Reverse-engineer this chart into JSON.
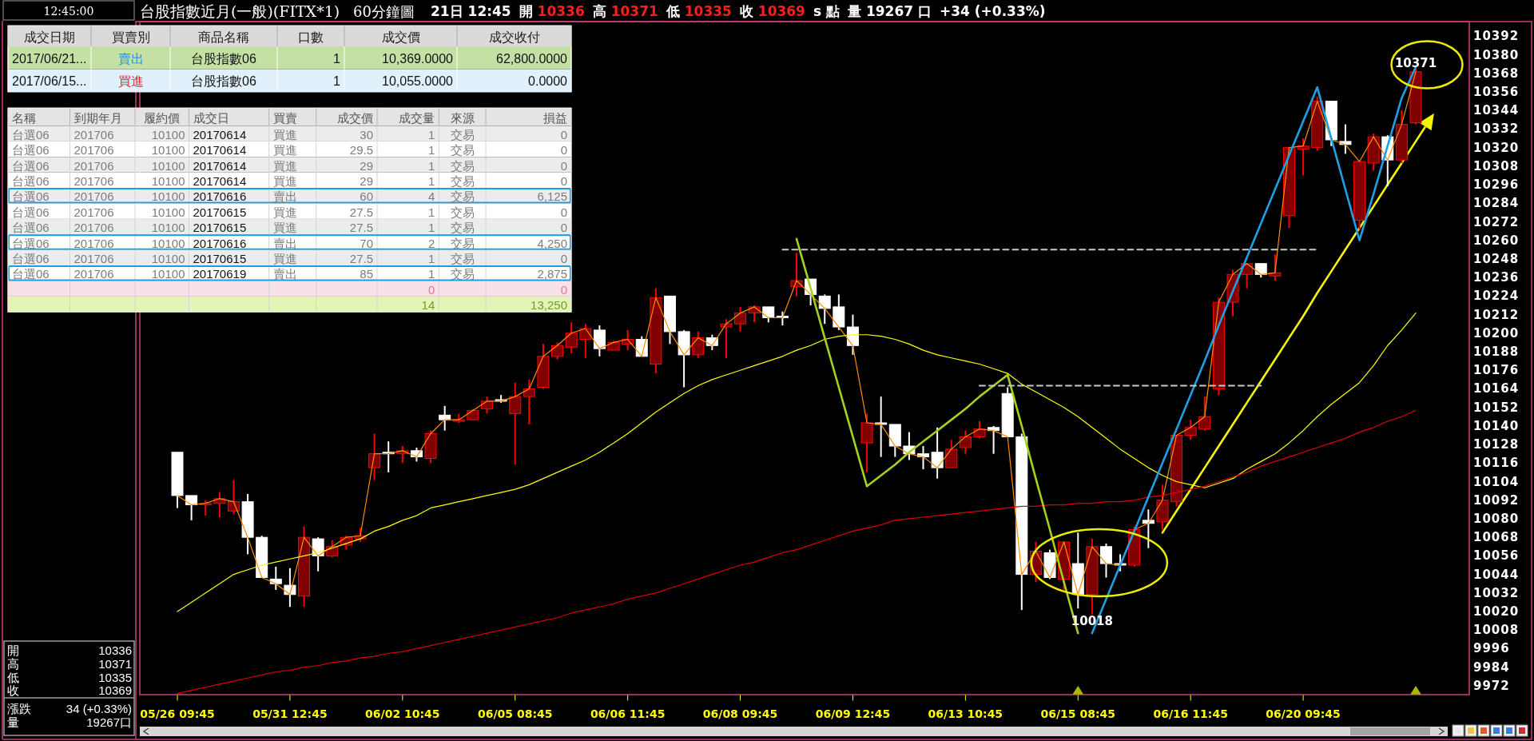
{
  "chart_data": [
    {
      "type": "candlestick",
      "title": "台股指數近月(一般)(FITX*1)",
      "subtitle": "60分鐘圖",
      "categories": [
        "05/26 09:45",
        null,
        null,
        null,
        null,
        null,
        null,
        null,
        "05/31 12:45",
        null,
        null,
        null,
        null,
        null,
        null,
        null,
        "06/02 10:45",
        null,
        null,
        null,
        null,
        null,
        null,
        null,
        "06/05 08:45",
        null,
        null,
        null,
        null,
        null,
        null,
        null,
        "06/06 11:45",
        null,
        null,
        null,
        null,
        null,
        null,
        null,
        "06/08 09:45",
        null,
        null,
        null,
        null,
        null,
        null,
        null,
        "06/09 12:45",
        null,
        null,
        null,
        null,
        null,
        null,
        null,
        "06/13 10:45",
        null,
        null,
        null,
        null,
        null,
        null,
        null,
        "06/15 08:45",
        null,
        null,
        null,
        null,
        null,
        null,
        null,
        "06/16 11:45",
        null,
        null,
        null,
        null,
        null,
        null,
        null,
        "06/20 09:45",
        null,
        null,
        null,
        null,
        null,
        null,
        null,
        null
      ],
      "ohlc": [
        [
          10123,
          10123,
          10087,
          10095
        ],
        [
          10095,
          10095,
          10079,
          10089
        ],
        [
          10089,
          10092,
          10082,
          10090
        ],
        [
          10090,
          10097,
          10081,
          10093
        ],
        [
          10085,
          10105,
          10083,
          10091
        ],
        [
          10091,
          10096,
          10057,
          10068
        ],
        [
          10068,
          10069,
          10042,
          10042
        ],
        [
          10041,
          10049,
          10034,
          10038
        ],
        [
          10037,
          10048,
          10023,
          10031
        ],
        [
          10030,
          10075,
          10023,
          10068
        ],
        [
          10067,
          10068,
          10046,
          10056
        ],
        [
          10056,
          10066,
          10055,
          10062
        ],
        [
          10063,
          10069,
          10060,
          10068
        ],
        [
          10067,
          10074,
          10065,
          10069
        ],
        [
          10113,
          10135,
          10105,
          10122
        ],
        [
          10123,
          10130,
          10110,
          10122
        ],
        [
          10122,
          10127,
          10116,
          10124
        ],
        [
          10124,
          10126,
          10117,
          10120
        ],
        [
          10119,
          10137,
          10116,
          10135
        ],
        [
          10147,
          10153,
          10137,
          10144
        ],
        [
          10143,
          10148,
          10142,
          10144
        ],
        [
          10144,
          10151,
          10144,
          10150
        ],
        [
          10151,
          10159,
          10148,
          10156
        ],
        [
          10157,
          10160,
          10155,
          10156
        ],
        [
          10148,
          10168,
          10115,
          10159
        ],
        [
          10159,
          10170,
          10141,
          10164
        ],
        [
          10165,
          10193,
          10164,
          10185
        ],
        [
          10185,
          10194,
          10183,
          10192
        ],
        [
          10191,
          10207,
          10187,
          10200
        ],
        [
          10196,
          10206,
          10184,
          10203
        ],
        [
          10202,
          10205,
          10185,
          10190
        ],
        [
          10189,
          10195,
          10189,
          10194
        ],
        [
          10193,
          10202,
          10189,
          10196
        ],
        [
          10196,
          10198,
          10185,
          10185
        ],
        [
          10180,
          10229,
          10174,
          10223
        ],
        [
          10224,
          10224,
          10193,
          10201
        ],
        [
          10201,
          10202,
          10165,
          10186
        ],
        [
          10186,
          10201,
          10184,
          10197
        ],
        [
          10197,
          10199,
          10189,
          10192
        ],
        [
          10204,
          10209,
          10184,
          10206
        ],
        [
          10206,
          10217,
          10201,
          10213
        ],
        [
          10213,
          10218,
          10207,
          10217
        ],
        [
          10217,
          10217,
          10207,
          10210
        ],
        [
          10211,
          10214,
          10205,
          10210
        ],
        [
          10230,
          10252,
          10224,
          10234
        ],
        [
          10235,
          10235,
          10218,
          10225
        ],
        [
          10224,
          10225,
          10206,
          10216
        ],
        [
          10217,
          10225,
          10202,
          10204
        ],
        [
          10204,
          10212,
          10186,
          10192
        ],
        [
          10129,
          10148,
          10110,
          10142
        ],
        [
          10142,
          10159,
          10120,
          10141
        ],
        [
          10141,
          10141,
          10120,
          10127
        ],
        [
          10127,
          10136,
          10118,
          10122
        ],
        [
          10122,
          10127,
          10112,
          10120
        ],
        [
          10123,
          10139,
          10106,
          10113
        ],
        [
          10113,
          10131,
          10113,
          10125
        ],
        [
          10126,
          10137,
          10122,
          10133
        ],
        [
          10133,
          10143,
          10132,
          10138
        ],
        [
          10139,
          10140,
          10122,
          10137
        ],
        [
          10161,
          10165,
          10133,
          10133
        ],
        [
          10133,
          10135,
          10021,
          10044
        ],
        [
          10044,
          10065,
          10039,
          10059
        ],
        [
          10058,
          10060,
          10041,
          10042
        ],
        [
          10041,
          10065,
          10034,
          10065
        ],
        [
          10051,
          10071,
          10022,
          10031
        ],
        [
          10031,
          10067,
          10018,
          10062
        ],
        [
          10062,
          10064,
          10042,
          10051
        ],
        [
          10051,
          10057,
          10046,
          10050
        ],
        [
          10050,
          10075,
          10049,
          10073
        ],
        [
          10079,
          10086,
          10061,
          10077
        ],
        [
          10078,
          10102,
          10073,
          10092
        ],
        [
          10091,
          10134,
          10088,
          10134
        ],
        [
          10134,
          10144,
          10131,
          10139
        ],
        [
          10138,
          10159,
          10137,
          10146
        ],
        [
          10164,
          10223,
          10160,
          10220
        ],
        [
          10220,
          10241,
          10211,
          10238
        ],
        [
          10238,
          10245,
          10229,
          10245
        ],
        [
          10245,
          10245,
          10236,
          10238
        ],
        [
          10237,
          10251,
          10234,
          10239
        ],
        [
          10276,
          10320,
          10268,
          10320
        ],
        [
          10319,
          10326,
          10302,
          10321
        ],
        [
          10320,
          10353,
          10318,
          10350
        ],
        [
          10350,
          10350,
          10321,
          10325
        ],
        [
          10324,
          10335,
          10316,
          10322
        ],
        [
          10273,
          10311,
          10267,
          10311
        ],
        [
          10310,
          10329,
          10305,
          10327
        ],
        [
          10327,
          10328,
          10295,
          10312
        ],
        [
          10312,
          10344,
          10310,
          10335
        ],
        [
          10336,
          10371,
          10335,
          10369
        ]
      ],
      "colors": [
        "#ffffff",
        "#ffffff",
        "#800000",
        "#800000",
        "#800000",
        "#ffffff",
        "#ffffff",
        "#ffffff",
        "#ffffff",
        "#800000",
        "#ffffff",
        "#800000",
        "#800000",
        "#800000",
        "#800000",
        "#ffffff",
        "#800000",
        "#ffffff",
        "#800000",
        "#ffffff",
        "#800000",
        "#800000",
        "#800000",
        "#ffffff",
        "#800000",
        "#800000",
        "#800000",
        "#800000",
        "#800000",
        "#800000",
        "#ffffff",
        "#800000",
        "#800000",
        "#ffffff",
        "#800000",
        "#ffffff",
        "#ffffff",
        "#800000",
        "#ffffff",
        "#800000",
        "#800000",
        "#800000",
        "#ffffff",
        "#ffffff",
        "#800000",
        "#ffffff",
        "#ffffff",
        "#ffffff",
        "#ffffff",
        "#800000",
        "#ffffff",
        "#ffffff",
        "#ffffff",
        "#ffffff",
        "#ffffff",
        "#800000",
        "#800000",
        "#800000",
        "#ffffff",
        "#ffffff",
        "#ffffff",
        "#800000",
        "#ffffff",
        "#800000",
        "#ffffff",
        "#800000",
        "#ffffff",
        "#ffffff",
        "#800000",
        "#ffffff",
        "#800000",
        "#800000",
        "#800000",
        "#800000",
        "#800000",
        "#800000",
        "#800000",
        "#ffffff",
        "#800000",
        "#800000",
        "#800000",
        "#800000",
        "#ffffff",
        "#ffffff",
        "#800000",
        "#800000",
        "#ffffff",
        "#800000",
        "#800000"
      ],
      "series": [
        {
          "type": "line",
          "color": "#ff8c00",
          "values": [
            10095,
            10089,
            10090,
            10093,
            10091,
            10068,
            10042,
            10038,
            10031,
            10068,
            10056,
            10062,
            10068,
            10069,
            10122,
            10122,
            10124,
            10120,
            10135,
            10144,
            10144,
            10150,
            10156,
            10156,
            10159,
            10164,
            10185,
            10192,
            10200,
            10203,
            10190,
            10194,
            10196,
            10185,
            10223,
            10201,
            10186,
            10197,
            10192,
            10206,
            10213,
            10217,
            10210,
            10210,
            10234,
            10225,
            10216,
            10204,
            10192,
            10142,
            10141,
            10127,
            10122,
            10120,
            10113,
            10125,
            10133,
            10138,
            10137,
            10133,
            10044,
            10059,
            10042,
            10065,
            10031,
            10062,
            10051,
            10050,
            10073,
            10077,
            10092,
            10134,
            10139,
            10146,
            10220,
            10238,
            10245,
            10238,
            10239,
            10320,
            10321,
            10350,
            10325,
            10322,
            10311,
            10327,
            10312,
            10335,
            10369
          ]
        },
        {
          "type": "line",
          "color": "#ffff00",
          "values": [
            10020,
            10026,
            10032,
            10038,
            10044,
            10047,
            10050,
            10052,
            10054,
            10056,
            10058,
            10061,
            10064,
            10067,
            10072,
            10075,
            10079,
            10082,
            10087,
            10089,
            10091,
            10093,
            10095,
            10097,
            10099,
            10102,
            10106,
            10110,
            10114,
            10118,
            10123,
            10129,
            10135,
            10142,
            10149,
            10155,
            10161,
            10166,
            10170,
            10173,
            10176,
            10179,
            10182,
            10185,
            10189,
            10192,
            10196,
            10198,
            10199,
            10199,
            10198,
            10196,
            10193,
            10189,
            10186,
            10184,
            10182,
            10180,
            10177,
            10174,
            10167,
            10162,
            10157,
            10152,
            10146,
            10139,
            10132,
            10125,
            10119,
            10113,
            10108,
            10104,
            10102,
            10100,
            10103,
            10106,
            10112,
            10117,
            10122,
            10129,
            10137,
            10146,
            10154,
            10161,
            10168,
            10179,
            10192,
            10202,
            10213
          ]
        },
        {
          "type": "line",
          "color": "#e00000",
          "values": [
            9967,
            9969,
            9971,
            9973,
            9975,
            9977,
            9979,
            9981,
            9982,
            9984,
            9985,
            9987,
            9988,
            9990,
            9991,
            9993,
            9994,
            9996,
            9998,
            10000,
            10002,
            10004,
            10006,
            10008,
            10010,
            10012,
            10014,
            10016,
            10019,
            10021,
            10023,
            10025,
            10028,
            10030,
            10032,
            10035,
            10038,
            10041,
            10044,
            10047,
            10050,
            10052,
            10055,
            10058,
            10060,
            10063,
            10066,
            10069,
            10072,
            10074,
            10076,
            10079,
            10080,
            10081,
            10082,
            10083,
            10084,
            10085,
            10086,
            10087,
            10088,
            10088,
            10089,
            10089,
            10090,
            10090,
            10091,
            10091,
            10092,
            10094,
            10095,
            10097,
            10099,
            10101,
            10104,
            10107,
            10110,
            10114,
            10117,
            10120,
            10123,
            10126,
            10129,
            10132,
            10136,
            10139,
            10143,
            10146,
            10150
          ]
        },
        {
          "type": "line",
          "color": "#a4d21e",
          "values": [
            null,
            null,
            null,
            null,
            null,
            null,
            null,
            null,
            null,
            null,
            null,
            null,
            null,
            null,
            null,
            null,
            null,
            null,
            null,
            null,
            null,
            null,
            null,
            null,
            null,
            null,
            null,
            null,
            null,
            null,
            null,
            null,
            null,
            null,
            null,
            null,
            null,
            null,
            null,
            null,
            null,
            null,
            null,
            null,
            10261,
            10229,
            10197,
            10165,
            10133,
            10101,
            10108,
            10115,
            10123,
            10130,
            10137,
            10144,
            10151,
            10159,
            10166,
            10173,
            10140,
            10106,
            10073,
            10039,
            10006,
            null,
            null,
            null,
            null,
            null,
            null,
            null,
            null,
            null,
            null,
            null,
            null,
            null,
            null,
            null,
            null,
            null,
            null,
            null,
            null,
            null,
            null,
            null,
            null
          ]
        },
        {
          "type": "line",
          "color": "#1ea0e6",
          "values": [
            null,
            null,
            null,
            null,
            null,
            null,
            null,
            null,
            null,
            null,
            null,
            null,
            null,
            null,
            null,
            null,
            null,
            null,
            null,
            null,
            null,
            null,
            null,
            null,
            null,
            null,
            null,
            null,
            null,
            null,
            null,
            null,
            null,
            null,
            null,
            null,
            null,
            null,
            null,
            null,
            null,
            null,
            null,
            null,
            null,
            null,
            null,
            null,
            null,
            null,
            null,
            null,
            null,
            null,
            null,
            null,
            null,
            null,
            null,
            null,
            null,
            null,
            null,
            null,
            null,
            10006,
            10028,
            10050,
            10072,
            10094,
            10116,
            10138,
            10160,
            10182,
            10205,
            10227,
            10249,
            10271,
            10293,
            10315,
            10337,
            10359,
            10326,
            10293,
            10260,
            10290,
            10321,
            10352,
            10372
          ]
        },
        {
          "type": "line",
          "color": "#f5f500",
          "values": [
            null,
            null,
            null,
            null,
            null,
            null,
            null,
            null,
            null,
            null,
            null,
            null,
            null,
            null,
            null,
            null,
            null,
            null,
            null,
            null,
            null,
            null,
            null,
            null,
            null,
            null,
            null,
            null,
            null,
            null,
            null,
            null,
            null,
            null,
            null,
            null,
            null,
            null,
            null,
            null,
            null,
            null,
            null,
            null,
            null,
            null,
            null,
            null,
            null,
            null,
            null,
            null,
            null,
            null,
            null,
            null,
            null,
            null,
            null,
            null,
            null,
            null,
            null,
            null,
            null,
            null,
            null,
            null,
            null,
            null,
            10071,
            10085,
            10099,
            10113,
            10127,
            10141,
            10155,
            10169,
            10183,
            10197,
            10211,
            10226,
            10240,
            10254,
            10268,
            10282,
            10296,
            10310,
            10324
          ]
        },
        {
          "type": "line",
          "color": "#c8c8c8",
          "line_style": "dashed",
          "values": [
            null,
            null,
            null,
            null,
            null,
            null,
            null,
            null,
            null,
            null,
            null,
            null,
            null,
            null,
            null,
            null,
            null,
            null,
            null,
            null,
            null,
            null,
            null,
            null,
            null,
            null,
            null,
            null,
            null,
            null,
            null,
            null,
            null,
            null,
            null,
            null,
            null,
            null,
            null,
            null,
            null,
            null,
            null,
            10254,
            10254,
            10254,
            10254,
            10254,
            10254,
            10254,
            10254,
            10254,
            10254,
            10254,
            10254,
            10254,
            10254,
            10254,
            10254,
            10254,
            10254,
            10254,
            10254,
            10254,
            10254,
            10254,
            10254,
            10254,
            10254,
            10254,
            10254,
            10254,
            10254,
            10254,
            10254,
            10254,
            10254,
            10254,
            10254,
            10254,
            10254,
            10254,
            null,
            null,
            null,
            null,
            null,
            null,
            null
          ]
        },
        {
          "type": "line",
          "color": "#c8c8c8",
          "line_style": "dashed",
          "values": [
            null,
            null,
            null,
            null,
            null,
            null,
            null,
            null,
            null,
            null,
            null,
            null,
            null,
            null,
            null,
            null,
            null,
            null,
            null,
            null,
            null,
            null,
            null,
            null,
            null,
            null,
            null,
            null,
            null,
            null,
            null,
            null,
            null,
            null,
            null,
            null,
            null,
            null,
            null,
            null,
            null,
            null,
            null,
            null,
            null,
            null,
            null,
            null,
            null,
            null,
            null,
            null,
            null,
            null,
            null,
            null,
            null,
            10166,
            10166,
            10166,
            10166,
            10166,
            10166,
            10166,
            10166,
            10166,
            10166,
            10166,
            10166,
            10166,
            10166,
            10166,
            10166,
            10166,
            10166,
            10166,
            10166,
            10166,
            null,
            null,
            null,
            null,
            null,
            null,
            null,
            null,
            null,
            null,
            null
          ]
        },
        {
          "type": "scatter",
          "marker": "triangle",
          "color": "#b4b400",
          "values": [
            null,
            null,
            null,
            null,
            null,
            null,
            null,
            null,
            null,
            null,
            null,
            null,
            null,
            null,
            null,
            null,
            null,
            null,
            null,
            null,
            null,
            null,
            null,
            null,
            null,
            null,
            null,
            null,
            null,
            null,
            null,
            null,
            null,
            null,
            null,
            null,
            null,
            null,
            null,
            null,
            null,
            null,
            null,
            null,
            null,
            null,
            null,
            null,
            null,
            null,
            null,
            null,
            null,
            null,
            null,
            null,
            null,
            null,
            null,
            null,
            null,
            null,
            null,
            null,
            9969,
            null,
            null,
            null,
            null,
            null,
            null,
            null,
            null,
            null,
            null,
            null,
            null,
            null,
            null,
            null,
            null,
            null,
            null,
            null,
            null,
            null,
            null,
            null,
            9969
          ]
        }
      ],
      "ylim": [
        9966,
        10402
      ],
      "yticks": [
        9972,
        9984,
        9996,
        10008,
        10020,
        10032,
        10044,
        10056,
        10068,
        10080,
        10092,
        10104,
        10116,
        10128,
        10140,
        10152,
        10164,
        10176,
        10188,
        10200,
        10212,
        10224,
        10236,
        10248,
        10260,
        10272,
        10284,
        10296,
        10308,
        10320,
        10332,
        10344,
        10356,
        10368,
        10380,
        10392
      ],
      "annotations": [
        "10018",
        "10371",
        "12:45:00",
        "21日 12:45",
        "開 10336",
        "高 10371",
        "低 10335",
        "收 10369",
        "s 點",
        "量 19267 口",
        "+34 (+0.33%)",
        "開 10336",
        "高 10371",
        "低 10335",
        "收 10369",
        "漲跌 34 (+0.33%)",
        "量 19267口"
      ]
    },
    {
      "type": "other",
      "categories": [
        "成交日期",
        "買賣別",
        "商品名稱",
        "口數",
        "成交價",
        "成交收付"
      ],
      "cell_labels": [
        [
          "2017/06/21...",
          "賣出",
          "台股指數06",
          "1",
          "10,369.0000",
          "62,800.0000"
        ],
        [
          "2017/06/15...",
          "買進",
          "台股指數06",
          "1",
          "10,055.0000",
          "0.0000"
        ]
      ],
      "colors": [
        "#c5e0a5",
        "#e1f0fa"
      ]
    },
    {
      "type": "other",
      "categories": [
        "名稱",
        "到期年月",
        "履約價",
        "成交日",
        "買賣",
        "成交價",
        "成交量",
        "來源",
        "損益"
      ],
      "cell_labels": [
        [
          "台選06",
          "201706",
          "10100",
          "20170614",
          "買進",
          "30",
          "1",
          "交易",
          "0"
        ],
        [
          "台選06",
          "201706",
          "10100",
          "20170614",
          "買進",
          "29.5",
          "1",
          "交易",
          "0"
        ],
        [
          "台選06",
          "201706",
          "10100",
          "20170614",
          "買進",
          "29",
          "1",
          "交易",
          "0"
        ],
        [
          "台選06",
          "201706",
          "10100",
          "20170614",
          "買進",
          "29",
          "1",
          "交易",
          "0"
        ],
        [
          "台選06",
          "201706",
          "10100",
          "20170616",
          "賣出",
          "60",
          "4",
          "交易",
          "6,125"
        ],
        [
          "台選06",
          "201706",
          "10100",
          "20170615",
          "買進",
          "27.5",
          "1",
          "交易",
          "0"
        ],
        [
          "台選06",
          "201706",
          "10100",
          "20170615",
          "買進",
          "27.5",
          "1",
          "交易",
          "0"
        ],
        [
          "台選06",
          "201706",
          "10100",
          "20170616",
          "賣出",
          "70",
          "2",
          "交易",
          "4,250"
        ],
        [
          "台選06",
          "201706",
          "10100",
          "20170615",
          "買進",
          "27.5",
          "1",
          "交易",
          "0"
        ],
        [
          "台選06",
          "201706",
          "10100",
          "20170619",
          "賣出",
          "85",
          "1",
          "交易",
          "2,875"
        ],
        [
          null,
          null,
          null,
          null,
          null,
          null,
          "0",
          null,
          "0"
        ],
        [
          null,
          null,
          null,
          null,
          null,
          null,
          "14",
          null,
          "13,250"
        ]
      ],
      "colors": [
        "#ececec",
        "#ffffff",
        "#ececec",
        "#ffffff",
        "#ececec",
        "#ffffff",
        "#ececec",
        "#ffffff",
        "#ececec",
        "#ffffff",
        "#f8e1e7",
        "#e3f4b6"
      ]
    }
  ]
}
